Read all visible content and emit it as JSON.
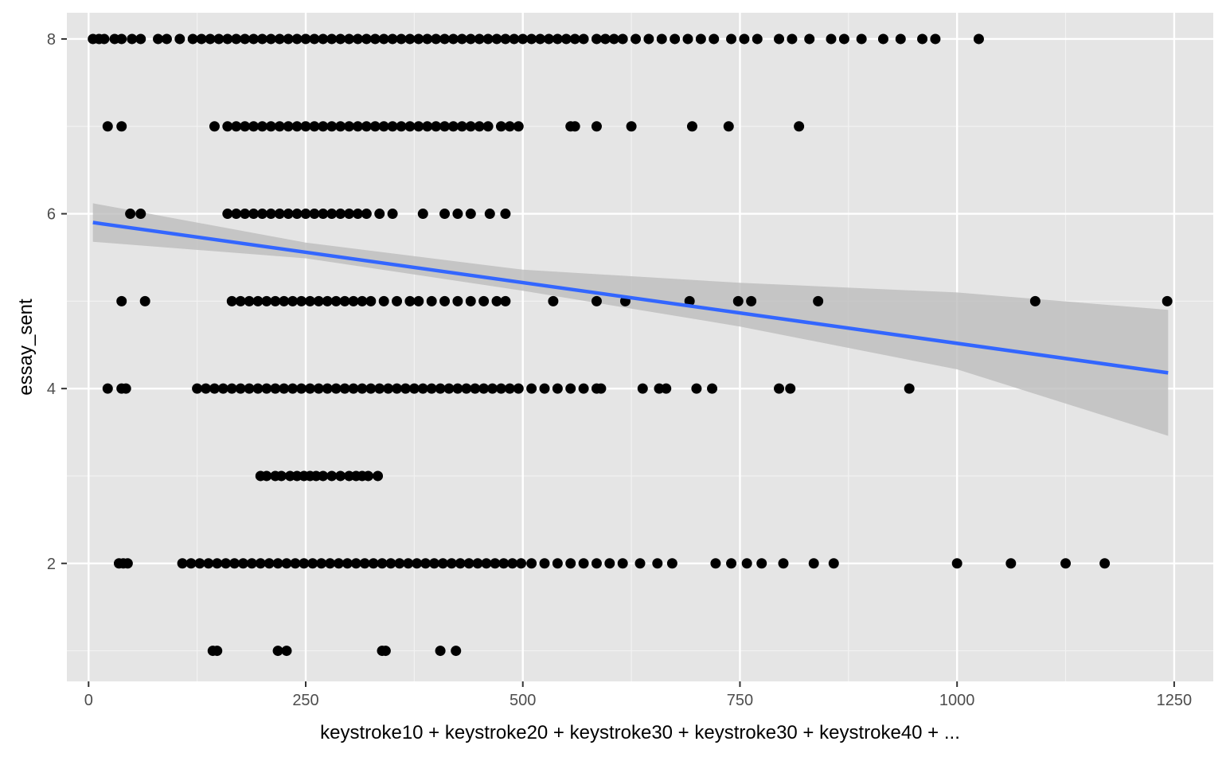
{
  "chart_data": {
    "type": "scatter",
    "title": "",
    "xlabel": "keystroke10 + keystroke20 + keystroke30 + keystroke30 + keystroke40 + ...",
    "ylabel": "essay_sent",
    "xlim": [
      -25,
      1295
    ],
    "ylim": [
      0.65,
      8.3
    ],
    "x_ticks": [
      0,
      250,
      500,
      750,
      1000,
      1250
    ],
    "x_tick_labels": [
      "0",
      "250",
      "500",
      "750",
      "1000",
      "1250"
    ],
    "y_ticks": [
      2,
      4,
      6,
      8
    ],
    "y_tick_labels": [
      "2",
      "4",
      "6",
      "8"
    ],
    "grid": true,
    "background": "#e5e5e5",
    "point_color": "#000000",
    "fit_line_color": "#3366ff",
    "ribbon_color": "#bdbdbd",
    "fit_line": {
      "x": [
        5,
        1243
      ],
      "y": [
        5.9,
        4.18
      ]
    },
    "confidence_band": {
      "x": [
        5,
        250,
        500,
        750,
        1000,
        1243
      ],
      "lower": [
        5.68,
        5.49,
        5.12,
        4.71,
        4.22,
        3.46
      ],
      "upper": [
        6.12,
        5.67,
        5.36,
        5.21,
        5.1,
        4.9
      ]
    },
    "series": [
      {
        "y": 8,
        "x": [
          5,
          12,
          18,
          30,
          38,
          50,
          60,
          80,
          90,
          105,
          120,
          130,
          140,
          150,
          160,
          170,
          180,
          190,
          200,
          210,
          220,
          230,
          240,
          250,
          260,
          270,
          280,
          290,
          300,
          310,
          320,
          330,
          340,
          350,
          360,
          370,
          380,
          390,
          400,
          410,
          420,
          430,
          440,
          450,
          460,
          470,
          480,
          490,
          500,
          510,
          520,
          530,
          540,
          550,
          560,
          570,
          585,
          595,
          605,
          615,
          630,
          645,
          660,
          675,
          690,
          705,
          720,
          740,
          755,
          770,
          795,
          810,
          830,
          855,
          870,
          890,
          915,
          935,
          960,
          975,
          1025
        ]
      },
      {
        "y": 7,
        "x": [
          22,
          38,
          145,
          160,
          170,
          180,
          190,
          200,
          210,
          220,
          230,
          240,
          250,
          260,
          270,
          280,
          290,
          300,
          310,
          320,
          330,
          340,
          350,
          360,
          370,
          380,
          390,
          400,
          410,
          420,
          430,
          440,
          450,
          460,
          475,
          485,
          495,
          555,
          560,
          585,
          625,
          695,
          737,
          818
        ]
      },
      {
        "y": 6,
        "x": [
          48,
          60,
          160,
          170,
          180,
          190,
          200,
          210,
          220,
          230,
          240,
          250,
          260,
          270,
          280,
          290,
          300,
          310,
          320,
          335,
          350,
          385,
          410,
          425,
          440,
          462,
          480
        ]
      },
      {
        "y": 5,
        "x": [
          38,
          65,
          165,
          175,
          185,
          195,
          205,
          215,
          225,
          235,
          245,
          255,
          265,
          275,
          285,
          295,
          305,
          315,
          325,
          340,
          355,
          370,
          380,
          395,
          410,
          425,
          440,
          455,
          470,
          480,
          535,
          585,
          618,
          692,
          748,
          763,
          840,
          1090,
          1242
        ]
      },
      {
        "y": 4,
        "x": [
          22,
          38,
          43,
          125,
          135,
          145,
          155,
          165,
          175,
          185,
          195,
          205,
          215,
          225,
          235,
          245,
          255,
          265,
          275,
          285,
          295,
          305,
          315,
          325,
          335,
          345,
          355,
          365,
          375,
          385,
          395,
          405,
          415,
          425,
          435,
          445,
          455,
          465,
          475,
          485,
          495,
          510,
          525,
          540,
          555,
          570,
          585,
          590,
          638,
          657,
          665,
          700,
          718,
          795,
          808,
          945
        ]
      },
      {
        "y": 3,
        "x": [
          198,
          205,
          215,
          222,
          232,
          240,
          248,
          255,
          262,
          270,
          280,
          290,
          300,
          308,
          315,
          322,
          333
        ]
      },
      {
        "y": 2,
        "x": [
          35,
          40,
          45,
          108,
          118,
          128,
          138,
          148,
          158,
          168,
          178,
          188,
          198,
          208,
          218,
          228,
          238,
          248,
          258,
          268,
          278,
          288,
          298,
          308,
          318,
          328,
          338,
          348,
          358,
          368,
          378,
          388,
          398,
          408,
          418,
          428,
          438,
          448,
          458,
          468,
          478,
          488,
          498,
          510,
          525,
          540,
          555,
          570,
          585,
          600,
          615,
          635,
          655,
          672,
          722,
          740,
          758,
          775,
          800,
          835,
          858,
          1000,
          1062,
          1125,
          1170
        ]
      },
      {
        "y": 1,
        "x": [
          143,
          148,
          218,
          228,
          338,
          342,
          405,
          423
        ]
      }
    ]
  }
}
